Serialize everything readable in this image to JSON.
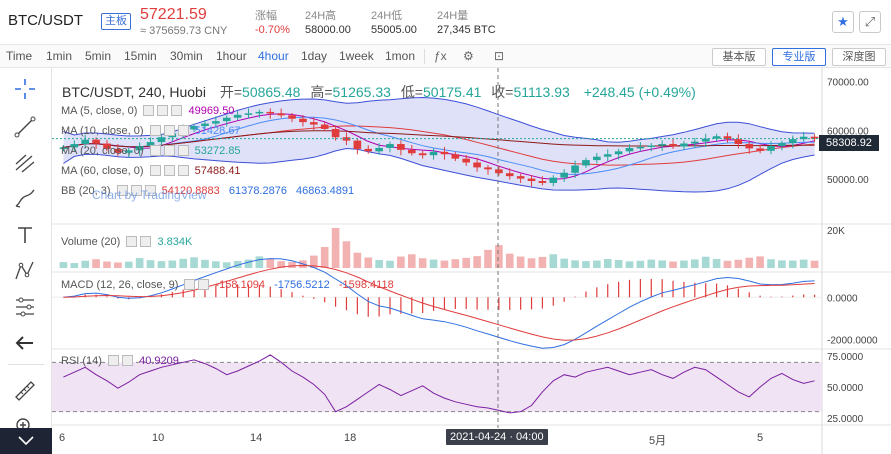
{
  "header": {
    "pair": "BTC/USDT",
    "badge": "主板",
    "price": "57221.59",
    "cny": "≈ 375659.73 CNY",
    "change_label": "涨幅",
    "change_value": "-0.70%",
    "high_label": "24H高",
    "high_value": "58000.00",
    "low_label": "24H低",
    "low_value": "55005.00",
    "volume_label": "24H量",
    "volume_value": "27,345 BTC",
    "accent": "#2f6fe0",
    "down_color": "#e03c3c",
    "up_color": "#26a69a"
  },
  "toolbar": {
    "timeframes": [
      "Time",
      "1min",
      "5min",
      "15min",
      "30min",
      "1hour",
      "4hour",
      "1day",
      "1week",
      "1mon"
    ],
    "active": "4hour",
    "chart_types": [
      "基本版",
      "专业版",
      "深度图"
    ],
    "active_chart_type": "专业版"
  },
  "chart_data": [
    {
      "type": "candlestick",
      "title": "BTC/USDT, 240, Huobi",
      "ohlc": {
        "open_label": "开=",
        "open": "50865.48",
        "high_label": "高=",
        "high": "51265.33",
        "low_label": "低=",
        "low": "50175.41",
        "close_label": "收=",
        "close": "51113.93",
        "change": "+248.45 (+0.49%)"
      },
      "indicators": [
        {
          "name": "MA (5, close, 0)",
          "value": "49969.50",
          "color": "#b000b0"
        },
        {
          "name": "MA (10, close, 0)",
          "value": "51428.67",
          "color": "#4b8df8"
        },
        {
          "name": "MA (20, close, 0)",
          "value": "53272.85",
          "color": "#26a69a"
        },
        {
          "name": "MA (60, close, 0)",
          "value": "57488.41",
          "color": "#8b1a1a"
        },
        {
          "name": "BB (20, 3)",
          "values": [
            "54120.8883",
            "61378.2876",
            "46863.4891"
          ],
          "colors": [
            "#e03c3c",
            "#2f6fe0",
            "#2f6fe0"
          ]
        }
      ],
      "watermark": "Chart by TradingView",
      "y_axis": {
        "ticks": [
          "70000.00",
          "60000.00",
          "50000.00"
        ],
        "range": [
          42000,
          72000
        ]
      },
      "last_price": "58308.92",
      "x_ticks": [
        "6",
        "10",
        "14",
        "18",
        "5月",
        "5"
      ],
      "crosshair_date": "2021-04-24 · 04:00",
      "close_series": [
        56500,
        57200,
        58100,
        57300,
        56200,
        55400,
        55900,
        56800,
        57600,
        58600,
        59400,
        60200,
        60900,
        61400,
        61900,
        62600,
        63200,
        63500,
        63800,
        63500,
        63100,
        62400,
        61700,
        61200,
        60300,
        58600,
        57900,
        56200,
        55700,
        56400,
        57200,
        56000,
        55300,
        54900,
        55600,
        55100,
        54200,
        53400,
        52400,
        52000,
        51200,
        50600,
        50100,
        49600,
        49200,
        50300,
        51300,
        52800,
        53900,
        54600,
        55100,
        55700,
        56400,
        56600,
        56900,
        57200,
        56700,
        57300,
        57700,
        58300,
        58800,
        58200,
        57200,
        56300,
        55800,
        56800,
        57400,
        58200,
        58700,
        58300
      ]
    },
    {
      "type": "bar",
      "title": "Volume (20)",
      "value": "3.834K",
      "y_axis": {
        "ticks": [
          "20K"
        ]
      },
      "values": [
        3.1,
        2.6,
        3.8,
        4.6,
        3.4,
        2.9,
        3.3,
        5.2,
        4.1,
        3.6,
        3.9,
        4.8,
        5.6,
        4.3,
        3.5,
        3.0,
        3.7,
        4.4,
        6.1,
        4.9,
        3.6,
        3.2,
        4.0,
        6.5,
        11.0,
        21.0,
        14.0,
        8.0,
        5.5,
        4.2,
        3.8,
        6.0,
        7.2,
        5.1,
        4.4,
        3.9,
        4.6,
        5.3,
        6.2,
        9.5,
        12.0,
        7.5,
        6.0,
        5.1,
        5.8,
        7.2,
        4.9,
        4.0,
        3.6,
        3.9,
        4.7,
        4.2,
        3.5,
        3.8,
        4.4,
        4.0,
        3.4,
        3.9,
        4.5,
        5.9,
        4.7,
        3.8,
        4.3,
        5.4,
        6.1,
        4.6,
        4.0,
        3.9,
        4.4,
        3.8
      ]
    },
    {
      "type": "line",
      "title": "MACD (12, 26, close, 9)",
      "values_text": [
        "-158.1094",
        "-1756.5212",
        "-1598.4118"
      ],
      "colors": [
        "#e03c3c",
        "#2f6fe0",
        "#e03c3c"
      ],
      "y_axis": {
        "ticks": [
          "0.0000",
          "-2000.0000"
        ],
        "range": [
          -2400,
          1100
        ]
      }
    },
    {
      "type": "line",
      "title": "RSI (14)",
      "value": "40.9209",
      "y_axis": {
        "ticks": [
          "75.0000",
          "50.0000",
          "25.0000"
        ],
        "range": [
          20,
          80
        ]
      },
      "values": [
        58,
        62,
        66,
        60,
        55,
        49,
        54,
        60,
        63,
        66,
        68,
        70,
        72,
        69,
        65,
        60,
        63,
        67,
        71,
        76,
        70,
        63,
        58,
        52,
        44,
        30,
        34,
        40,
        46,
        52,
        48,
        43,
        47,
        51,
        45,
        41,
        38,
        36,
        34,
        33,
        31,
        29,
        30,
        35,
        46,
        55,
        60,
        58,
        62,
        64,
        66,
        63,
        60,
        62,
        64,
        60,
        57,
        62,
        66,
        64,
        58,
        52,
        46,
        42,
        50,
        57,
        61,
        56,
        53,
        55
      ]
    }
  ]
}
